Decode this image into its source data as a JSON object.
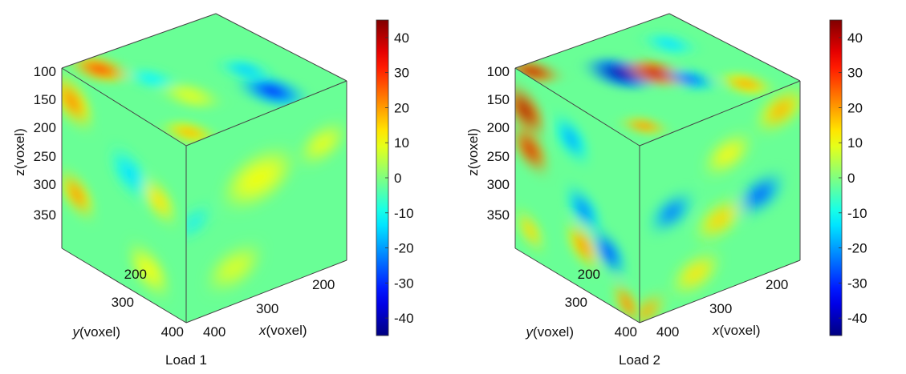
{
  "chart_data": [
    {
      "type": "heatmap",
      "subtype": "3d-voxel-cube",
      "caption": "Load 1",
      "axes": {
        "x": {
          "label": "x(voxel)",
          "ticks": [
            200,
            300,
            400
          ]
        },
        "y": {
          "label": "y(voxel)",
          "ticks": [
            200,
            300,
            400
          ]
        },
        "z": {
          "label": "z(voxel)",
          "ticks": [
            100,
            150,
            200,
            250,
            300,
            350
          ]
        }
      },
      "colorbar": {
        "ticks": [
          40,
          30,
          20,
          10,
          0,
          -10,
          -20,
          -30,
          -40
        ],
        "range": [
          -45,
          45
        ],
        "colormap": "jet"
      },
      "features": [
        {
          "face": "top",
          "u": 0.12,
          "v": 0.15,
          "value": 28,
          "r": 0.12
        },
        {
          "face": "top",
          "u": 0.9,
          "v": 0.1,
          "value": 18,
          "r": 0.1
        },
        {
          "face": "top",
          "u": 0.8,
          "v": 0.72,
          "value": -30,
          "r": 0.14
        },
        {
          "face": "top",
          "u": 0.55,
          "v": 0.75,
          "value": -16,
          "r": 0.1
        },
        {
          "face": "top",
          "u": 0.35,
          "v": 0.3,
          "value": -12,
          "r": 0.1
        },
        {
          "face": "top",
          "u": 0.6,
          "v": 0.35,
          "value": 8,
          "r": 0.12
        },
        {
          "face": "left",
          "u": 0.08,
          "v": 0.15,
          "value": 22,
          "r": 0.12
        },
        {
          "face": "left",
          "u": 0.12,
          "v": 0.65,
          "value": 22,
          "r": 0.1
        },
        {
          "face": "left",
          "u": 0.55,
          "v": 0.35,
          "value": -14,
          "r": 0.12
        },
        {
          "face": "left",
          "u": 0.78,
          "v": 0.4,
          "value": 14,
          "r": 0.1
        },
        {
          "face": "left",
          "u": 0.7,
          "v": 0.82,
          "value": 10,
          "r": 0.12
        },
        {
          "face": "right",
          "u": 0.45,
          "v": 0.35,
          "value": 10,
          "r": 0.16
        },
        {
          "face": "right",
          "u": 0.05,
          "v": 0.45,
          "value": -14,
          "r": 0.07
        },
        {
          "face": "right",
          "u": 0.85,
          "v": 0.3,
          "value": 10,
          "r": 0.1
        },
        {
          "face": "right",
          "u": 0.3,
          "v": 0.8,
          "value": 8,
          "r": 0.12
        }
      ]
    },
    {
      "type": "heatmap",
      "subtype": "3d-voxel-cube",
      "caption": "Load 2",
      "axes": {
        "x": {
          "label": "x(voxel)",
          "ticks": [
            200,
            300,
            400
          ]
        },
        "y": {
          "label": "y(voxel)",
          "ticks": [
            200,
            300,
            400
          ]
        },
        "z": {
          "label": "z(voxel)",
          "ticks": [
            100,
            150,
            200,
            250,
            300,
            350
          ]
        }
      },
      "colorbar": {
        "ticks": [
          40,
          30,
          20,
          10,
          0,
          -10,
          -20,
          -30,
          -40
        ],
        "range": [
          -45,
          45
        ],
        "colormap": "jet"
      },
      "features": [
        {
          "face": "top",
          "u": 0.08,
          "v": 0.05,
          "value": 40,
          "r": 0.1
        },
        {
          "face": "top",
          "u": 0.85,
          "v": 0.15,
          "value": 24,
          "r": 0.08
        },
        {
          "face": "top",
          "u": 0.35,
          "v": 0.4,
          "value": -40,
          "r": 0.14
        },
        {
          "face": "top",
          "u": 0.45,
          "v": 0.55,
          "value": 38,
          "r": 0.12
        },
        {
          "face": "top",
          "u": 0.6,
          "v": 0.65,
          "value": -26,
          "r": 0.1
        },
        {
          "face": "top",
          "u": 0.8,
          "v": 0.85,
          "value": 20,
          "r": 0.1
        },
        {
          "face": "top",
          "u": 0.25,
          "v": 0.8,
          "value": -14,
          "r": 0.1
        },
        {
          "face": "left",
          "u": 0.08,
          "v": 0.2,
          "value": 42,
          "r": 0.11
        },
        {
          "face": "left",
          "u": 0.12,
          "v": 0.4,
          "value": 38,
          "r": 0.1
        },
        {
          "face": "left",
          "u": 0.45,
          "v": 0.2,
          "value": -20,
          "r": 0.1
        },
        {
          "face": "left",
          "u": 0.55,
          "v": 0.55,
          "value": -24,
          "r": 0.1
        },
        {
          "face": "left",
          "u": 0.55,
          "v": 0.75,
          "value": 22,
          "r": 0.1
        },
        {
          "face": "left",
          "u": 0.75,
          "v": 0.7,
          "value": -30,
          "r": 0.1
        },
        {
          "face": "left",
          "u": 0.9,
          "v": 0.92,
          "value": 26,
          "r": 0.08
        },
        {
          "face": "left",
          "u": 0.12,
          "v": 0.85,
          "value": 16,
          "r": 0.08
        },
        {
          "face": "right",
          "u": 0.2,
          "v": 0.45,
          "value": -28,
          "r": 0.09
        },
        {
          "face": "right",
          "u": 0.75,
          "v": 0.55,
          "value": -30,
          "r": 0.1
        },
        {
          "face": "right",
          "u": 0.5,
          "v": 0.6,
          "value": 16,
          "r": 0.1
        },
        {
          "face": "right",
          "u": 0.55,
          "v": 0.25,
          "value": 12,
          "r": 0.1
        },
        {
          "face": "right",
          "u": 0.88,
          "v": 0.12,
          "value": 20,
          "r": 0.1
        },
        {
          "face": "right",
          "u": 0.35,
          "v": 0.85,
          "value": 14,
          "r": 0.1
        },
        {
          "face": "right",
          "u": 0.05,
          "v": 0.95,
          "value": 24,
          "r": 0.07
        }
      ]
    }
  ]
}
